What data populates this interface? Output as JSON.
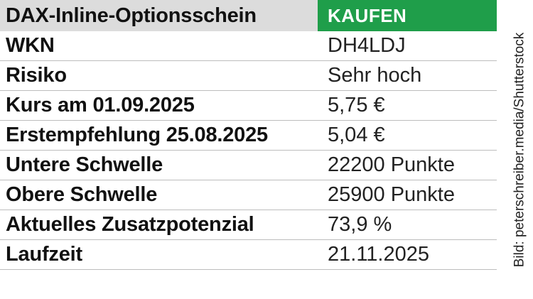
{
  "header": {
    "title": "DAX-Inline-Optionsschein",
    "badge": "KAUFEN"
  },
  "rows": [
    {
      "label": "WKN",
      "value": "DH4LDJ"
    },
    {
      "label": "Risiko",
      "value": "Sehr hoch"
    },
    {
      "label": "Kurs am 01.09.2025",
      "value": "5,75 €"
    },
    {
      "label": "Erstempfehlung 25.08.2025",
      "value": "5,04 €"
    },
    {
      "label": "Untere Schwelle",
      "value": "22200 Punkte"
    },
    {
      "label": "Obere Schwelle",
      "value": "25900 Punkte"
    },
    {
      "label": "Aktuelles Zusatzpotenzial",
      "value": "73,9 %"
    },
    {
      "label": "Laufzeit",
      "value": "21.11.2025"
    }
  ],
  "credit": "Bild: peterschreiber.media/Shutterstock",
  "colors": {
    "badge": "#1f9e4a",
    "header_bg": "#dcdcdc",
    "divider": "#bdbdbd"
  }
}
